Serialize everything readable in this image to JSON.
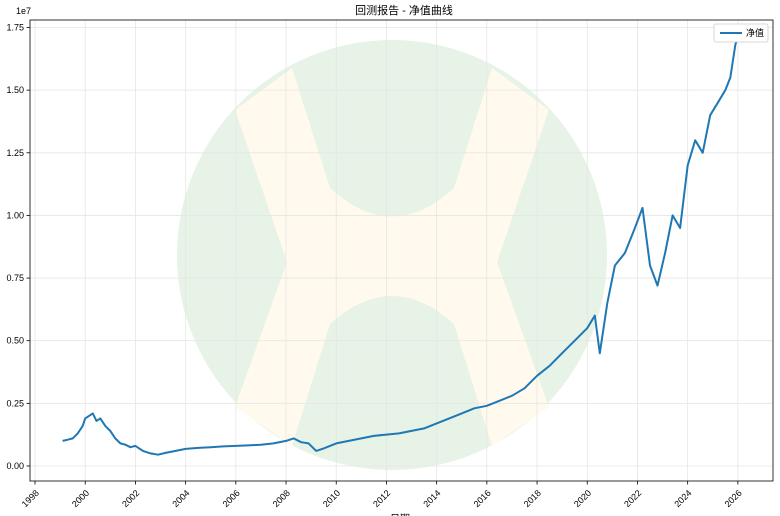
{
  "chart_data": {
    "type": "line",
    "title": "回测报告 - 净值曲线",
    "xlabel": "日期",
    "ylabel": "",
    "y_scale_label": "1e7",
    "grid": true,
    "legend_position": "top-right",
    "xlim": [
      1997.8,
      2027.4
    ],
    "ylim": [
      -0.06,
      1.78
    ],
    "x_ticks": [
      1998,
      2000,
      2002,
      2004,
      2006,
      2008,
      2010,
      2012,
      2014,
      2016,
      2018,
      2020,
      2022,
      2024,
      2026
    ],
    "x_tick_labels": [
      "1998",
      "2000",
      "2002",
      "2004",
      "2006",
      "2008",
      "2010",
      "2012",
      "2014",
      "2016",
      "2018",
      "2020",
      "2022",
      "2024",
      "2026"
    ],
    "y_ticks": [
      0.0,
      0.25,
      0.5,
      0.75,
      1.0,
      1.25,
      1.5,
      1.75
    ],
    "y_tick_labels": [
      "0.00",
      "0.25",
      "0.50",
      "0.75",
      "1.00",
      "1.25",
      "1.50",
      "1.75"
    ],
    "series": [
      {
        "name": "净值",
        "color": "#1f77b4",
        "x": [
          1999.1,
          1999.3,
          1999.5,
          1999.7,
          1999.9,
          2000.0,
          2000.15,
          2000.3,
          2000.45,
          2000.6,
          2000.8,
          2001.0,
          2001.2,
          2001.4,
          2001.6,
          2001.8,
          2002.0,
          2002.3,
          2002.6,
          2002.9,
          2003.2,
          2003.6,
          2004.0,
          2004.5,
          2005.0,
          2005.5,
          2006.0,
          2006.5,
          2007.0,
          2007.5,
          2008.0,
          2008.3,
          2008.6,
          2008.9,
          2009.2,
          2009.5,
          2010.0,
          2010.5,
          2011.0,
          2011.5,
          2012.0,
          2012.5,
          2013.0,
          2013.5,
          2014.0,
          2014.5,
          2015.0,
          2015.5,
          2016.0,
          2016.5,
          2017.0,
          2017.5,
          2018.0,
          2018.5,
          2019.0,
          2019.5,
          2020.0,
          2020.3,
          2020.5,
          2020.8,
          2021.1,
          2021.5,
          2021.9,
          2022.2,
          2022.5,
          2022.8,
          2023.1,
          2023.4,
          2023.7,
          2024.0,
          2024.3,
          2024.6,
          2024.9,
          2025.2,
          2025.5,
          2025.7,
          2025.9,
          2026.0
        ],
        "values": [
          0.1,
          0.105,
          0.11,
          0.13,
          0.16,
          0.19,
          0.2,
          0.21,
          0.18,
          0.19,
          0.16,
          0.14,
          0.11,
          0.09,
          0.085,
          0.075,
          0.08,
          0.06,
          0.05,
          0.045,
          0.052,
          0.06,
          0.068,
          0.072,
          0.075,
          0.078,
          0.08,
          0.082,
          0.085,
          0.09,
          0.1,
          0.11,
          0.095,
          0.09,
          0.06,
          0.07,
          0.09,
          0.1,
          0.11,
          0.12,
          0.125,
          0.13,
          0.14,
          0.15,
          0.17,
          0.19,
          0.21,
          0.23,
          0.24,
          0.26,
          0.28,
          0.31,
          0.36,
          0.4,
          0.45,
          0.5,
          0.55,
          0.6,
          0.45,
          0.65,
          0.8,
          0.85,
          0.95,
          1.03,
          0.8,
          0.72,
          0.85,
          1.0,
          0.95,
          1.2,
          1.3,
          1.25,
          1.4,
          1.45,
          1.5,
          1.55,
          1.68,
          1.72
        ]
      }
    ]
  }
}
